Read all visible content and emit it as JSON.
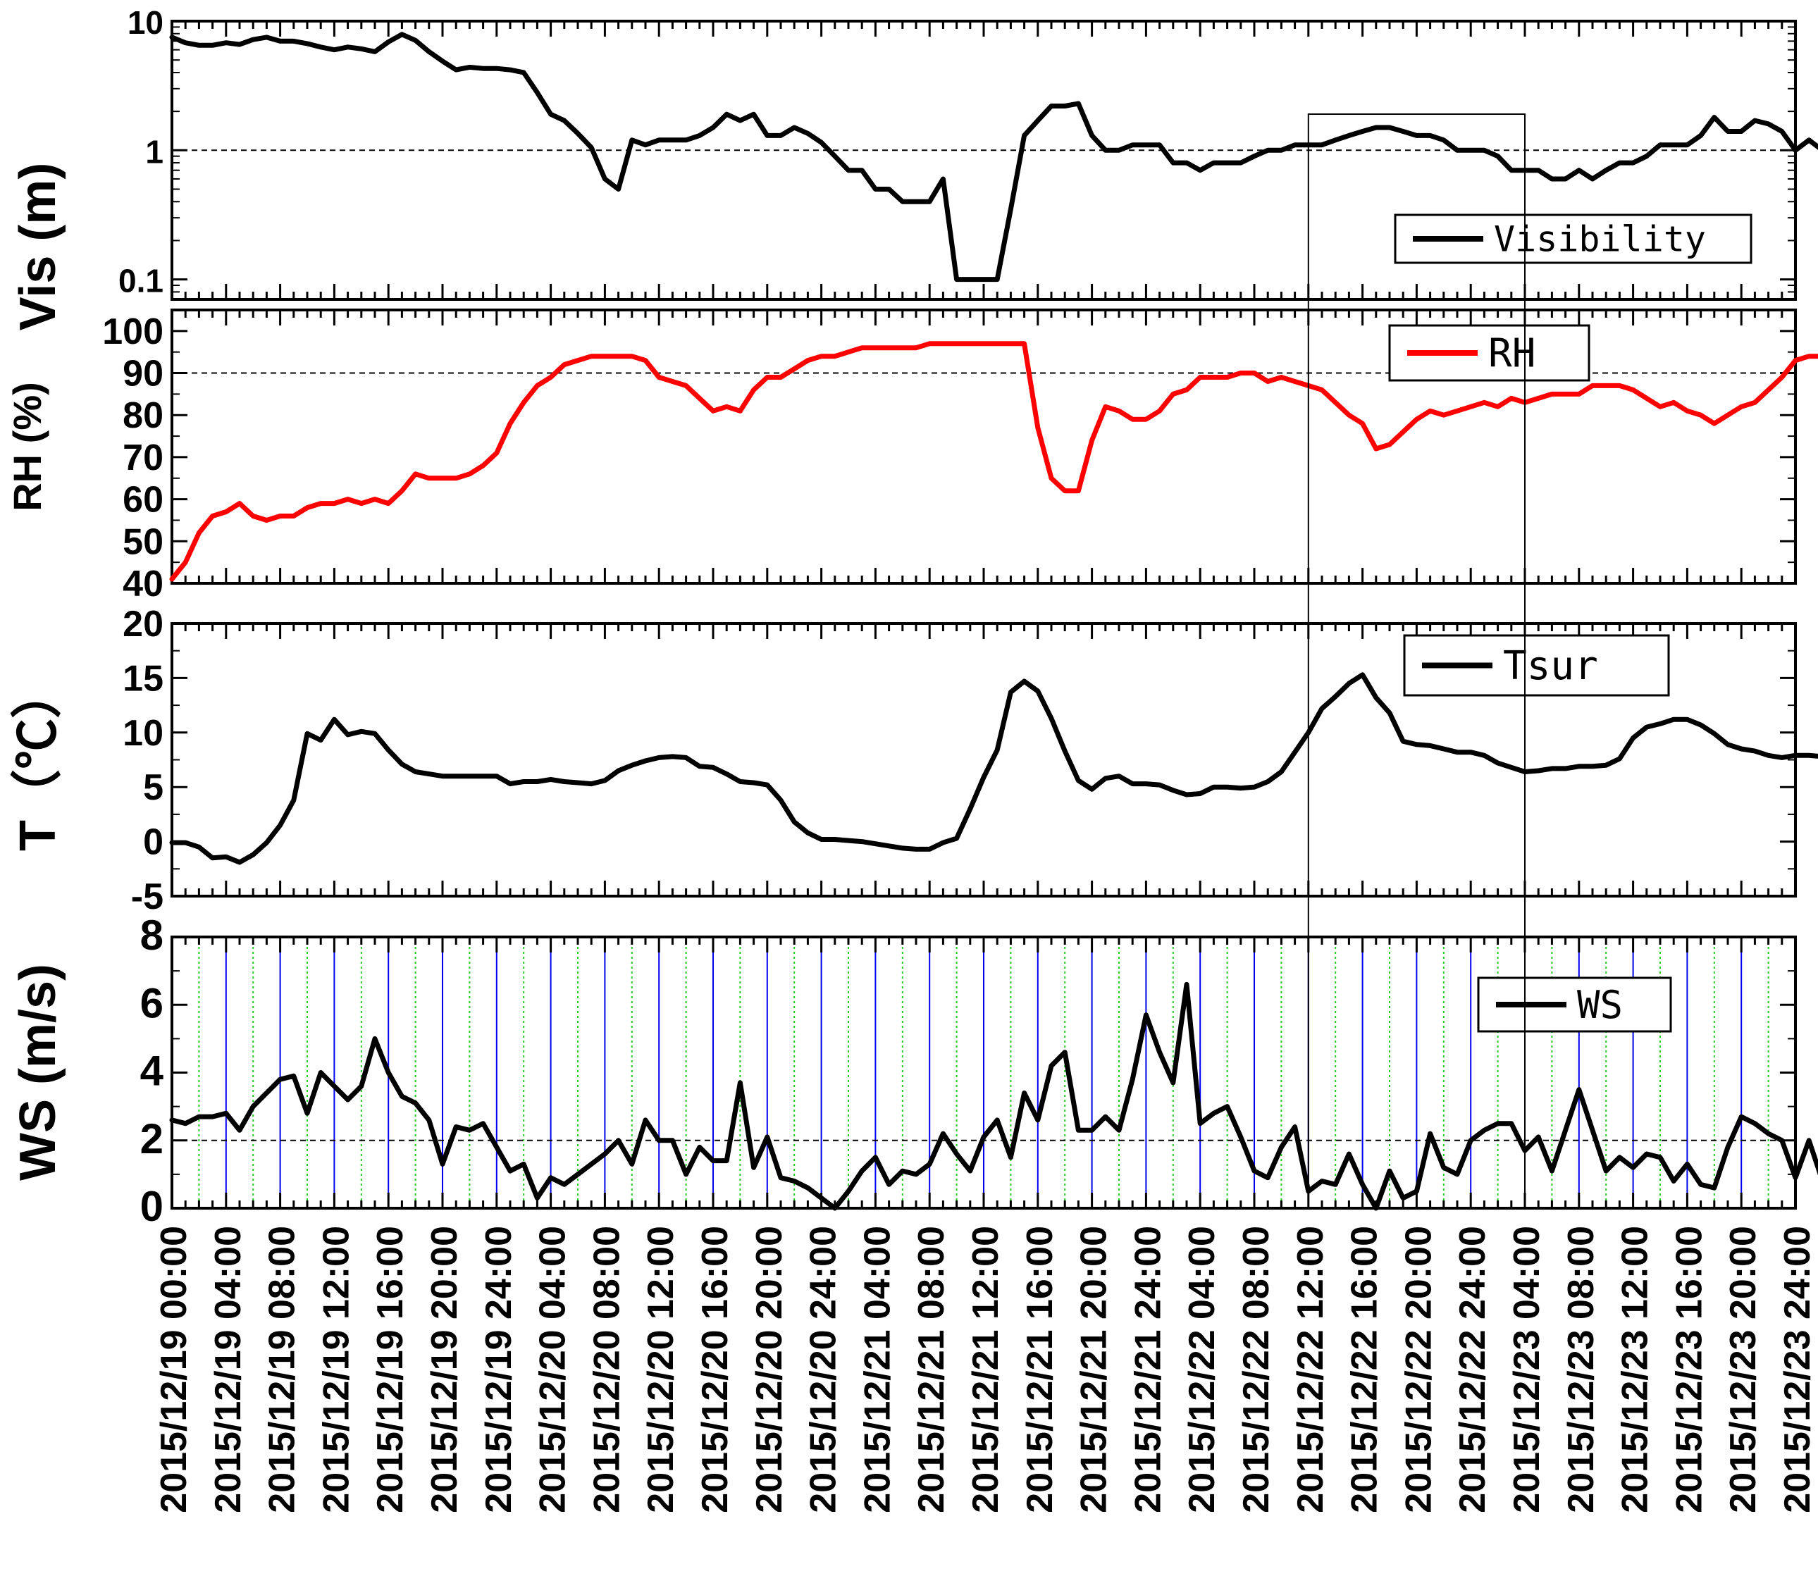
{
  "chart_data": {
    "type": "line",
    "x_step_hours": 1,
    "x_tick_labels": [
      "2015/12/19 00:00",
      "2015/12/19 04:00",
      "2015/12/19 08:00",
      "2015/12/19 12:00",
      "2015/12/19 16:00",
      "2015/12/19 20:00",
      "2015/12/19 24:00",
      "2015/12/20 04:00",
      "2015/12/20 08:00",
      "2015/12/20 12:00",
      "2015/12/20 16:00",
      "2015/12/20 20:00",
      "2015/12/20 24:00",
      "2015/12/21 04:00",
      "2015/12/21 08:00",
      "2015/12/21 12:00",
      "2015/12/21 16:00",
      "2015/12/21 20:00",
      "2015/12/21 24:00",
      "2015/12/22 04:00",
      "2015/12/22 08:00",
      "2015/12/22 12:00",
      "2015/12/22 16:00",
      "2015/12/22 20:00",
      "2015/12/22 24:00",
      "2015/12/23 04:00",
      "2015/12/23 08:00",
      "2015/12/23 12:00",
      "2015/12/23 16:00",
      "2015/12/23 20:00",
      "2015/12/23 24:00"
    ],
    "highlight_box": {
      "x_start_hour": 84,
      "x_end_hour": 100
    },
    "panels": [
      {
        "id": "vis",
        "ylabel": "Vis (m)",
        "yscale": "log",
        "ylim": [
          0.07,
          10
        ],
        "yticks": [
          10,
          1,
          0.1
        ],
        "ytick_labels": [
          "10",
          "1",
          "0.1"
        ],
        "reference_line": 1,
        "legend": "Visibility",
        "color": "#000000",
        "values": [
          7.5,
          6.8,
          6.5,
          6.5,
          6.8,
          6.6,
          7.2,
          7.5,
          7.0,
          7.0,
          6.7,
          6.3,
          6.0,
          6.3,
          6.1,
          5.8,
          6.9,
          7.9,
          7.1,
          5.8,
          4.9,
          4.2,
          4.4,
          4.3,
          4.3,
          4.2,
          4.0,
          2.8,
          1.9,
          1.7,
          1.35,
          1.05,
          0.6,
          0.5,
          1.2,
          1.1,
          1.2,
          1.2,
          1.2,
          1.3,
          1.5,
          1.9,
          1.7,
          1.9,
          1.3,
          1.3,
          1.5,
          1.35,
          1.15,
          0.9,
          0.7,
          0.7,
          0.5,
          0.5,
          0.4,
          0.4,
          0.4,
          0.6,
          0.1,
          0.1,
          0.1,
          0.1,
          0.35,
          1.3,
          1.7,
          2.2,
          2.2,
          2.3,
          1.3,
          1.0,
          1.0,
          1.1,
          1.1,
          1.1,
          0.8,
          0.8,
          0.7,
          0.8,
          0.8,
          0.8,
          0.9,
          1.0,
          1.0,
          1.1,
          1.1,
          1.1,
          1.2,
          1.3,
          1.4,
          1.5,
          1.5,
          1.4,
          1.3,
          1.3,
          1.2,
          1.0,
          1.0,
          1.0,
          0.9,
          0.7,
          0.7,
          0.7,
          0.6,
          0.6,
          0.7,
          0.6,
          0.7,
          0.8,
          0.8,
          0.9,
          1.1,
          1.1,
          1.1,
          1.3,
          1.8,
          1.4,
          1.4,
          1.7,
          1.6,
          1.4,
          1.0,
          1.2,
          1.0,
          1.2
        ]
      },
      {
        "id": "rh",
        "ylabel": "RH (%)",
        "yscale": "linear",
        "ylim": [
          40,
          105
        ],
        "yticks": [
          40,
          50,
          60,
          70,
          80,
          90,
          100
        ],
        "ytick_labels": [
          "40",
          "50",
          "60",
          "70",
          "80",
          "90",
          "100"
        ],
        "reference_line": 90,
        "legend": "RH",
        "color": "#ff0000",
        "values": [
          41,
          45,
          52,
          56,
          57,
          59,
          56,
          55,
          56,
          56,
          58,
          59,
          59,
          60,
          59,
          60,
          59,
          62,
          66,
          65,
          65,
          65,
          66,
          68,
          71,
          78,
          83,
          87,
          89,
          92,
          93,
          94,
          94,
          94,
          94,
          93,
          89,
          88,
          87,
          84,
          81,
          82,
          81,
          86,
          89,
          89,
          91,
          93,
          94,
          94,
          95,
          96,
          96,
          96,
          96,
          96,
          97,
          97,
          97,
          97,
          97,
          97,
          97,
          97,
          77,
          65,
          62,
          62,
          74,
          82,
          81,
          79,
          79,
          81,
          85,
          86,
          89,
          89,
          89,
          90,
          90,
          88,
          89,
          88,
          87,
          86,
          83,
          80,
          78,
          72,
          73,
          76,
          79,
          81,
          80,
          81,
          82,
          83,
          82,
          84,
          83,
          84,
          85,
          85,
          85,
          87,
          87,
          87,
          86,
          84,
          82,
          83,
          81,
          80,
          78,
          80,
          82,
          83,
          86,
          89,
          93,
          94,
          94,
          95
        ]
      },
      {
        "id": "t",
        "ylabel": "T（℃）",
        "yscale": "linear",
        "ylim": [
          -5,
          20
        ],
        "yticks": [
          -5,
          0,
          5,
          10,
          15,
          20
        ],
        "ytick_labels": [
          "-5",
          "0",
          "5",
          "10",
          "15",
          "20"
        ],
        "reference_line": null,
        "legend": "Tsur",
        "color": "#000000",
        "values": [
          -0.1,
          -0.1,
          -0.5,
          -1.5,
          -1.4,
          -1.9,
          -1.2,
          -0.1,
          1.5,
          3.8,
          9.9,
          9.3,
          11.2,
          9.8,
          10.1,
          9.9,
          8.4,
          7.1,
          6.4,
          6.2,
          6.0,
          6.0,
          6.0,
          6.0,
          6.0,
          5.3,
          5.5,
          5.5,
          5.7,
          5.5,
          5.4,
          5.3,
          5.6,
          6.5,
          7.0,
          7.4,
          7.7,
          7.8,
          7.7,
          6.9,
          6.8,
          6.2,
          5.5,
          5.4,
          5.2,
          3.8,
          1.8,
          0.8,
          0.2,
          0.2,
          0.1,
          0.0,
          -0.2,
          -0.4,
          -0.6,
          -0.7,
          -0.7,
          -0.1,
          0.3,
          3.0,
          5.9,
          8.4,
          13.7,
          14.7,
          13.8,
          11.3,
          8.3,
          5.6,
          4.8,
          5.8,
          6.0,
          5.3,
          5.3,
          5.2,
          4.7,
          4.3,
          4.4,
          5.0,
          5.0,
          4.9,
          5.0,
          5.5,
          6.4,
          8.2,
          10.0,
          12.2,
          13.3,
          14.5,
          15.3,
          13.2,
          11.8,
          9.2,
          8.9,
          8.8,
          8.5,
          8.2,
          8.2,
          7.9,
          7.2,
          6.8,
          6.4,
          6.5,
          6.7,
          6.7,
          6.9,
          6.9,
          7.0,
          7.6,
          9.5,
          10.5,
          10.8,
          11.2,
          11.2,
          10.7,
          9.9,
          8.9,
          8.5,
          8.3,
          7.9,
          7.7,
          7.9,
          7.9,
          7.8
        ]
      },
      {
        "id": "ws",
        "ylabel": "WS (m/s)",
        "yscale": "linear",
        "ylim": [
          0,
          8
        ],
        "yticks": [
          0,
          2,
          4,
          6,
          8
        ],
        "ytick_labels": [
          "0",
          "2",
          "4",
          "6",
          "8"
        ],
        "reference_line": 2,
        "legend": "WS",
        "color": "#000000",
        "values": [
          2.6,
          2.5,
          2.7,
          2.7,
          2.8,
          2.3,
          3.0,
          3.4,
          3.8,
          3.9,
          2.8,
          4.0,
          3.6,
          3.2,
          3.6,
          5.0,
          4.0,
          3.3,
          3.1,
          2.6,
          1.3,
          2.4,
          2.3,
          2.5,
          1.8,
          1.1,
          1.3,
          0.3,
          0.9,
          0.7,
          1.0,
          1.3,
          1.6,
          2.0,
          1.3,
          2.6,
          2.0,
          2.0,
          1.0,
          1.8,
          1.4,
          1.4,
          3.7,
          1.2,
          2.1,
          0.9,
          0.8,
          0.6,
          0.3,
          0.0,
          0.5,
          1.1,
          1.5,
          0.7,
          1.1,
          1.0,
          1.3,
          2.2,
          1.6,
          1.1,
          2.1,
          2.6,
          1.5,
          3.4,
          2.6,
          4.2,
          4.6,
          2.3,
          2.3,
          2.7,
          2.3,
          3.8,
          5.7,
          4.6,
          3.7,
          6.6,
          2.5,
          2.8,
          3.0,
          2.1,
          1.1,
          0.9,
          1.8,
          2.4,
          0.5,
          0.8,
          0.7,
          1.6,
          0.7,
          0.0,
          1.1,
          0.3,
          0.5,
          2.2,
          1.2,
          1.0,
          2.0,
          2.3,
          2.5,
          2.5,
          1.7,
          2.1,
          1.1,
          2.3,
          3.5,
          2.3,
          1.1,
          1.5,
          1.2,
          1.6,
          1.5,
          0.8,
          1.3,
          0.7,
          0.6,
          1.8,
          2.7,
          2.5,
          2.2,
          2.0,
          0.9,
          2.0,
          0.8,
          2.0
        ]
      }
    ]
  }
}
